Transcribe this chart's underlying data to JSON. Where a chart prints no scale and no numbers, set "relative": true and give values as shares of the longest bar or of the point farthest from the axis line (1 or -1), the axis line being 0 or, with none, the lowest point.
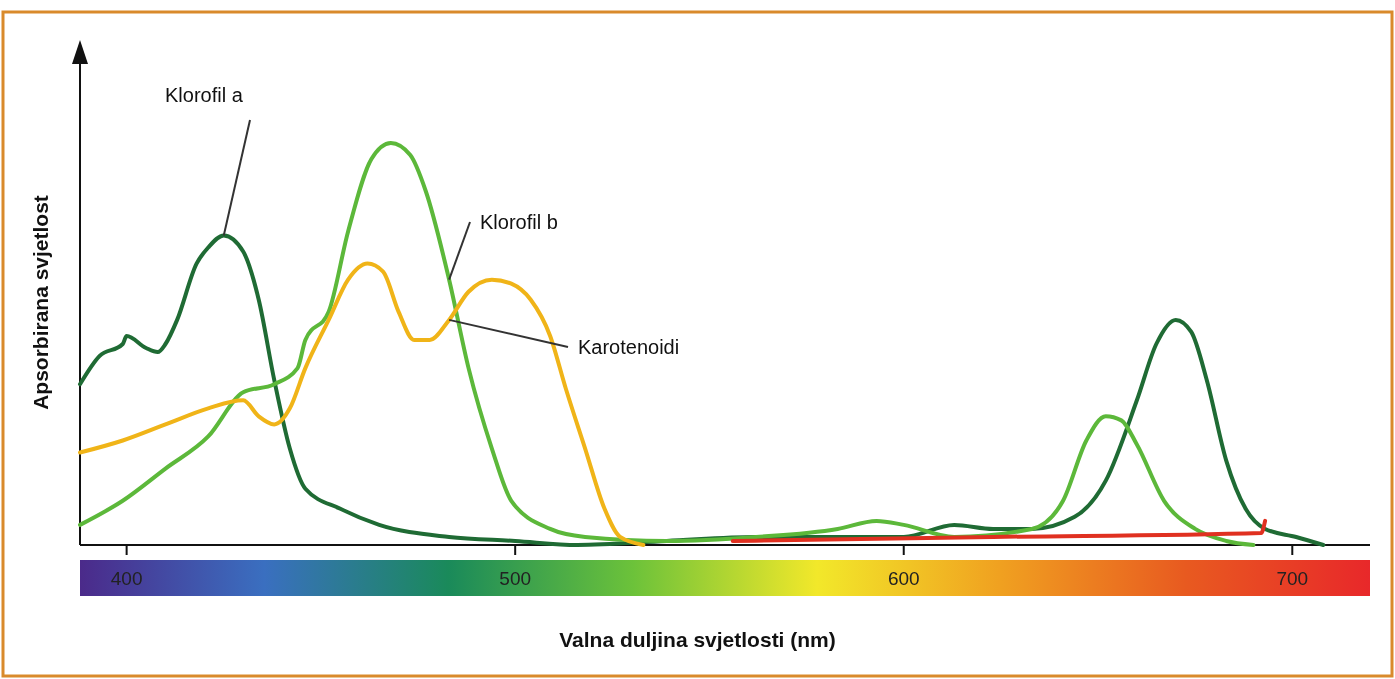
{
  "chart_data": {
    "type": "line",
    "xlabel": "Valna duljina svjetlosti (nm)",
    "ylabel": "Apsorbirana svjetlost",
    "relative": true,
    "xlim": [
      388,
      720
    ],
    "xticks": [
      400,
      500,
      600,
      700
    ],
    "series": [
      {
        "name": "Klorofil a",
        "color": "#1f6b34",
        "x": [
          388,
          393,
          399,
          400,
          405,
          408,
          410,
          413,
          418,
          421,
          425,
          430,
          434,
          438,
          442,
          446,
          455,
          465,
          483,
          500,
          516,
          539,
          562,
          586,
          600,
          613,
          623,
          633,
          644,
          652,
          660,
          665,
          670,
          674,
          678,
          683,
          688,
          693,
          701,
          708
        ],
        "values": [
          0.4,
          0.47,
          0.5,
          0.52,
          0.49,
          0.48,
          0.5,
          0.56,
          0.7,
          0.74,
          0.77,
          0.73,
          0.61,
          0.41,
          0.24,
          0.14,
          0.09,
          0.05,
          0.02,
          0.01,
          0.0,
          0.01,
          0.02,
          0.02,
          0.02,
          0.05,
          0.04,
          0.04,
          0.07,
          0.16,
          0.36,
          0.5,
          0.56,
          0.53,
          0.41,
          0.21,
          0.09,
          0.04,
          0.02,
          0.0
        ]
      },
      {
        "name": "Klorofil b",
        "color": "#5cb83a",
        "x": [
          388,
          399,
          410,
          421,
          430,
          438,
          444,
          446,
          452,
          457,
          463,
          468,
          473,
          477,
          483,
          488,
          494,
          499,
          509,
          518,
          539,
          562,
          583,
          593,
          600,
          613,
          633,
          641,
          647,
          652,
          656,
          660,
          667,
          675,
          683,
          690
        ],
        "values": [
          0.05,
          0.11,
          0.19,
          0.27,
          0.38,
          0.4,
          0.44,
          0.51,
          0.58,
          0.78,
          0.96,
          1.0,
          0.97,
          0.88,
          0.66,
          0.44,
          0.24,
          0.11,
          0.04,
          0.02,
          0.01,
          0.02,
          0.04,
          0.06,
          0.05,
          0.02,
          0.04,
          0.11,
          0.26,
          0.32,
          0.31,
          0.25,
          0.11,
          0.04,
          0.01,
          0.0
        ]
      },
      {
        "name": "Karotenoidi",
        "color": "#f0b418",
        "x": [
          388,
          399,
          410,
          421,
          430,
          434,
          438,
          442,
          446,
          452,
          457,
          462,
          466,
          470,
          474,
          478,
          483,
          488,
          494,
          499,
          504,
          509,
          513,
          518,
          523,
          527,
          533
        ],
        "values": [
          0.23,
          0.26,
          0.3,
          0.34,
          0.36,
          0.32,
          0.3,
          0.34,
          0.44,
          0.56,
          0.66,
          0.7,
          0.68,
          0.58,
          0.51,
          0.51,
          0.56,
          0.63,
          0.66,
          0.65,
          0.61,
          0.52,
          0.39,
          0.24,
          0.09,
          0.02,
          0.0
        ]
      },
      {
        "color": "#e03020",
        "x": [
          556,
          623,
          692,
          693
        ],
        "values": [
          0.01,
          0.02,
          0.03,
          0.06
        ]
      }
    ]
  }
}
